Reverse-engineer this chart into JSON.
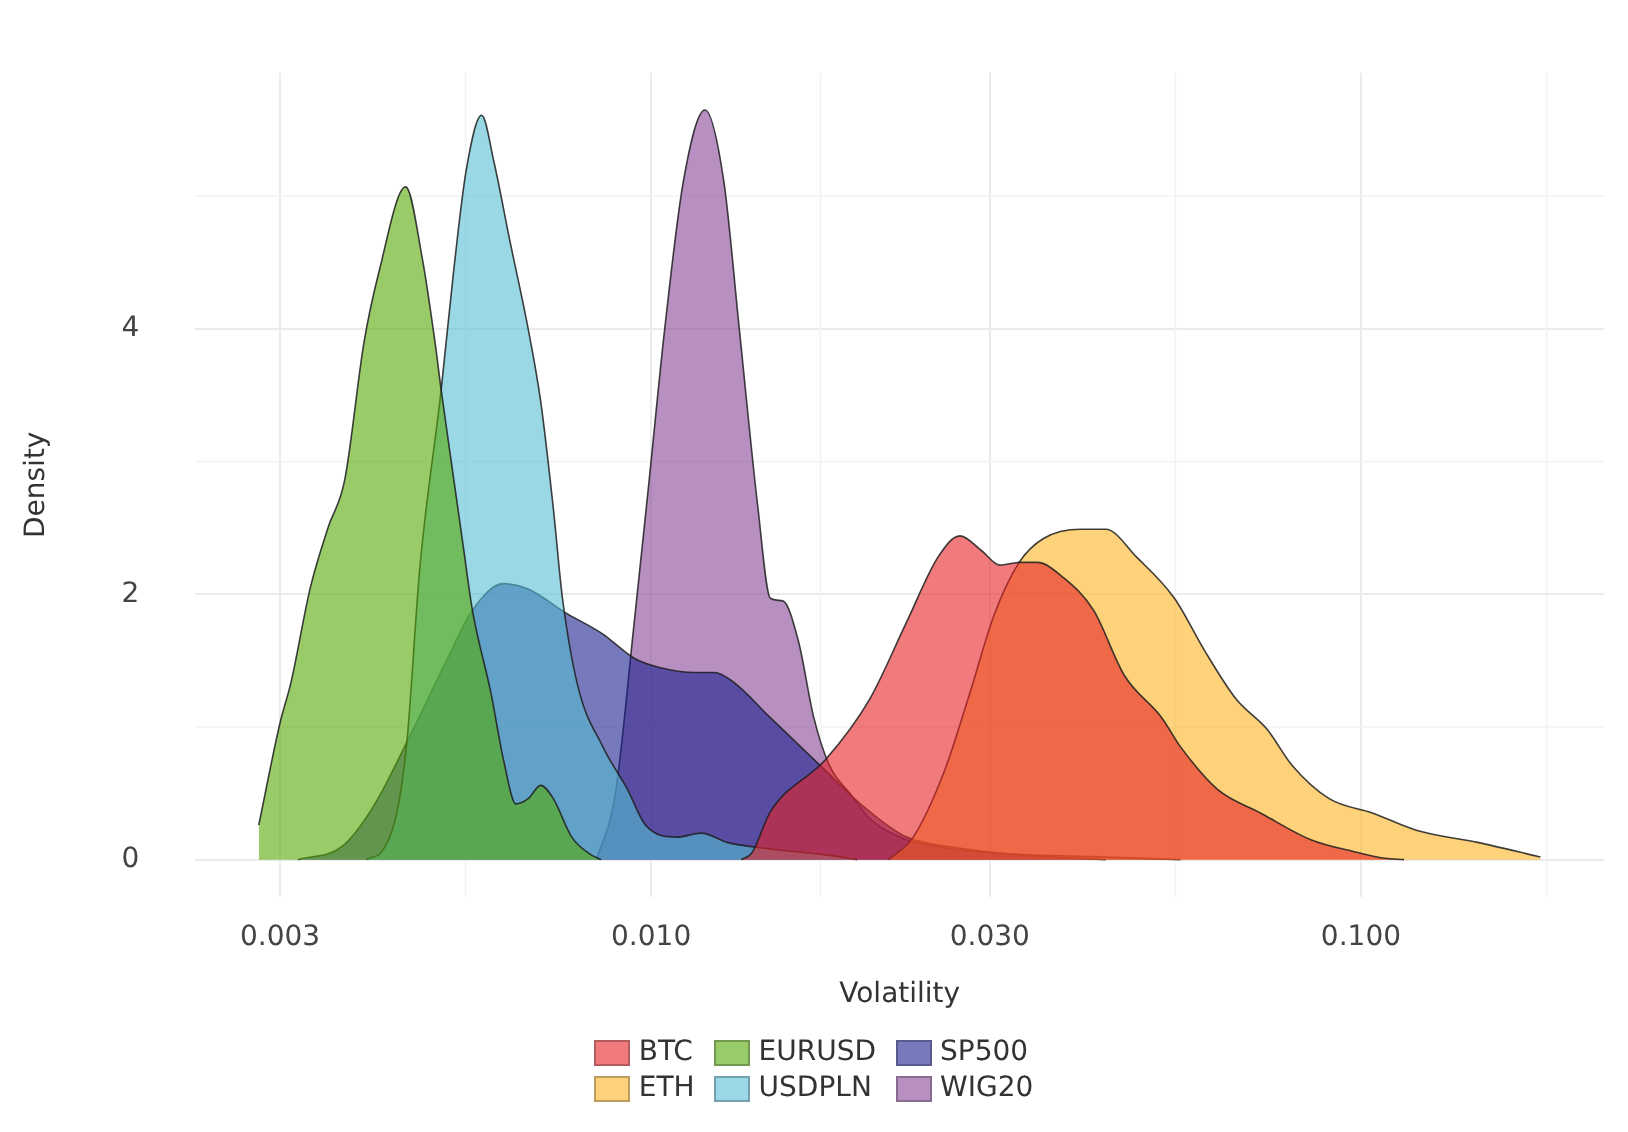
{
  "chart_data": {
    "type": "area",
    "xlabel": "Volatility",
    "ylabel": "Density",
    "log": "x",
    "xlim": [
      0.00228,
      0.22
    ],
    "xticks": [
      0.003,
      {
        "value": 0.01,
        "label": "0.010"
      },
      {
        "value": 0.03,
        "label": "0.030"
      },
      {
        "value": 0.1,
        "label": "0.100"
      }
    ],
    "ylim": [
      -0.28,
      5.93
    ],
    "yticks": [
      0,
      2,
      4
    ],
    "grid": true,
    "legend": "bottom",
    "marker": "none",
    "series": [
      {
        "name": "BTC",
        "color": "#e62125",
        "x": [
          0.0134,
          0.01386,
          0.01472,
          0.01765,
          0.02032,
          0.0229,
          0.02536,
          0.02722,
          0.02919,
          0.031,
          0.033,
          0.035,
          0.038,
          0.042,
          0.0464,
          0.0524,
          0.0557,
          0.0628,
          0.0723,
          0.085,
          0.0978,
          0.108,
          0.115
        ],
        "values": [
          0,
          0.05,
          0.36,
          0.76,
          1.21,
          1.79,
          2.28,
          2.44,
          2.33,
          2.22,
          2.24,
          2.24,
          2.13,
          1.88,
          1.39,
          1.07,
          0.85,
          0.53,
          0.35,
          0.15,
          0.06,
          0.01,
          0
        ]
      },
      {
        "name": "ETH",
        "color": "#fcb421",
        "x": [
          0.0216,
          0.0234,
          0.0259,
          0.0281,
          0.0304,
          0.033,
          0.0357,
          0.0403,
          0.0437,
          0.0483,
          0.0546,
          0.0603,
          0.0667,
          0.0738,
          0.08,
          0.0902,
          0.104,
          0.12,
          0.146,
          0.179
        ],
        "values": [
          0,
          0.17,
          0.67,
          1.25,
          1.84,
          2.24,
          2.42,
          2.49,
          2.49,
          2.28,
          1.97,
          1.57,
          1.21,
          0.98,
          0.71,
          0.46,
          0.35,
          0.22,
          0.13,
          0.02
        ]
      },
      {
        "name": "EURUSD",
        "color": "#55aa05",
        "x": [
          0.0028,
          0.003,
          0.00311,
          0.00331,
          0.00351,
          0.0037,
          0.00394,
          0.00414,
          0.00451,
          0.00476,
          0.00496,
          0.00506,
          0.00527,
          0.00543,
          0.0056,
          0.00595,
          0.00619,
          0.00645,
          0.00671,
          0.00699,
          0.00728,
          0.00773,
          0.00821,
          0.0085
        ],
        "values": [
          0.26,
          1.03,
          1.34,
          2.05,
          2.51,
          2.86,
          3.9,
          4.44,
          5.07,
          4.53,
          3.9,
          3.54,
          2.87,
          2.38,
          1.88,
          1.25,
          0.76,
          0.42,
          0.46,
          0.56,
          0.46,
          0.17,
          0.04,
          0
        ]
      },
      {
        "name": "USDPLN",
        "color": "#55bed2",
        "x": [
          0.00397,
          0.00421,
          0.0044,
          0.00453,
          0.00472,
          0.00506,
          0.00527,
          0.00549,
          0.00577,
          0.00601,
          0.00632,
          0.00671,
          0.00699,
          0.00728,
          0.0075,
          0.00789,
          0.00855,
          0.00926,
          0.00982,
          0.01088,
          0.01177,
          0.01279,
          0.01472,
          0.01797,
          0.0195
        ],
        "values": [
          0,
          0.09,
          0.4,
          0.9,
          2.19,
          3.54,
          4.44,
          5.2,
          5.61,
          5.25,
          4.67,
          4.0,
          3.45,
          2.65,
          1.97,
          1.3,
          0.85,
          0.53,
          0.26,
          0.17,
          0.2,
          0.13,
          0.08,
          0.03,
          0
        ]
      },
      {
        "name": "SP500",
        "color": "#1a2090",
        "x": [
          0.00318,
          0.00367,
          0.00406,
          0.00458,
          0.00517,
          0.0056,
          0.00619,
          0.00671,
          0.00758,
          0.00855,
          0.00945,
          0.01024,
          0.01156,
          0.01228,
          0.01305,
          0.01472,
          0.0173,
          0.01992,
          0.0229,
          0.02694,
          0.0343,
          0.0437
        ],
        "values": [
          0,
          0.1,
          0.4,
          0.94,
          1.52,
          1.88,
          2.08,
          2.04,
          1.86,
          1.7,
          1.52,
          1.45,
          1.41,
          1.41,
          1.34,
          1.07,
          0.71,
          0.4,
          0.17,
          0.09,
          0.03,
          0
        ]
      },
      {
        "name": "WIG20",
        "color": "#874498",
        "x": [
          0.00838,
          0.0089,
          0.00945,
          0.00994,
          0.01045,
          0.0111,
          0.01191,
          0.01266,
          0.01331,
          0.01414,
          0.01472,
          0.01533,
          0.01612,
          0.01695,
          0.01783,
          0.01912,
          0.02032,
          0.02288,
          0.02583,
          0.0304,
          0.0437,
          0.0557
        ],
        "values": [
          0,
          0.49,
          1.75,
          2.87,
          4.0,
          5.11,
          5.65,
          5.11,
          4.0,
          2.65,
          1.97,
          1.95,
          1.65,
          1.07,
          0.71,
          0.49,
          0.31,
          0.15,
          0.09,
          0.05,
          0.02,
          0
        ]
      }
    ]
  }
}
